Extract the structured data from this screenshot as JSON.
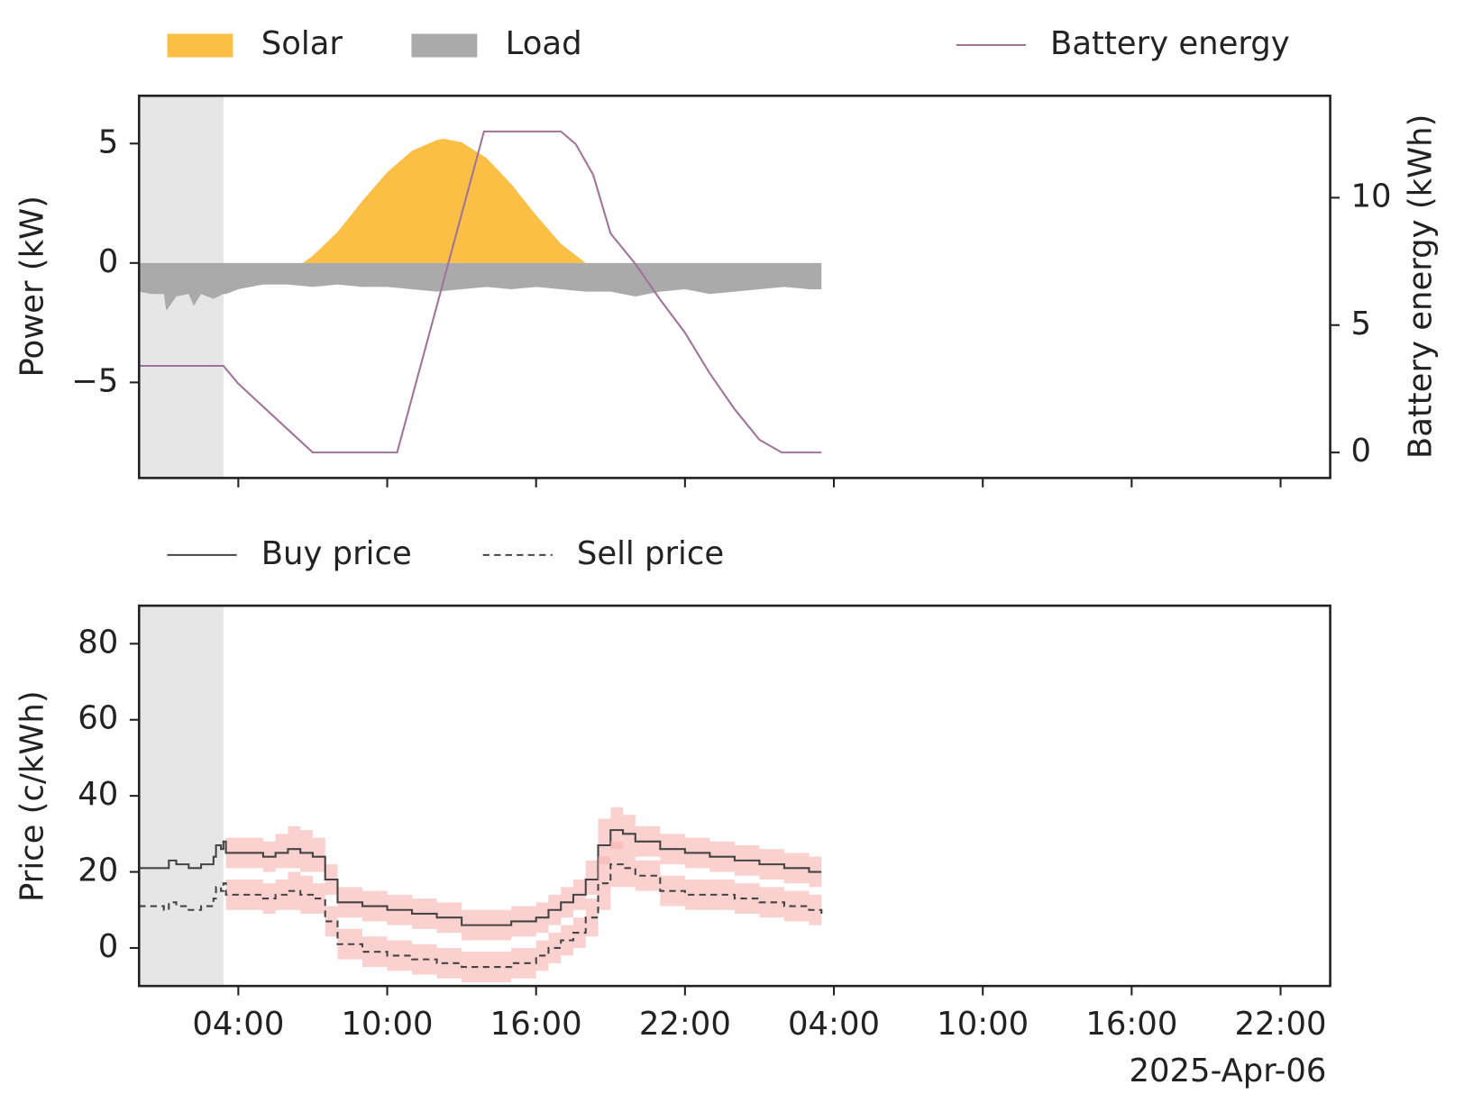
{
  "chart_data": [
    {
      "type": "area",
      "ylabel": "Power (kW)",
      "y2label": "Battery energy (kWh)",
      "xlim": [
        0,
        48
      ],
      "xticks": [
        4,
        10,
        16,
        22,
        28,
        34,
        40,
        46
      ],
      "ylim": [
        -9,
        7
      ],
      "yticks": [
        {
          "value": -5,
          "label": "−5"
        },
        0,
        5
      ],
      "y2lim": [
        -1,
        14
      ],
      "y2ticks": [
        0,
        5,
        10
      ],
      "history_span": [
        0,
        3.4
      ],
      "history_color": "#e6e6e6",
      "grid": false,
      "series": [
        {
          "name": "Solar",
          "kind": "area",
          "color": "#fbbf45",
          "x": [
            6.6,
            7,
            8,
            9,
            10,
            11,
            12,
            12.3,
            13,
            14,
            15,
            16,
            17,
            18
          ],
          "values": [
            0,
            0.3,
            1.3,
            2.6,
            3.8,
            4.7,
            5.15,
            5.2,
            5.05,
            4.4,
            3.3,
            2.0,
            0.8,
            0
          ]
        },
        {
          "name": "Load",
          "kind": "area",
          "color": "#aaaaaa",
          "x": [
            0,
            0.5,
            1,
            1.1,
            1.5,
            2,
            2.2,
            2.5,
            3,
            3.4,
            3.5,
            4,
            5,
            6,
            7,
            8,
            9,
            10,
            11,
            12,
            13,
            14,
            15,
            16,
            17,
            18,
            19,
            20,
            21,
            22,
            23,
            24,
            25,
            26,
            27,
            27.5
          ],
          "values": [
            -1.2,
            -1.3,
            -1.3,
            -2,
            -1.4,
            -1.3,
            -1.8,
            -1.3,
            -1.5,
            -1.3,
            -1.3,
            -1.1,
            -0.9,
            -0.9,
            -1.0,
            -0.9,
            -1.0,
            -1.0,
            -1.1,
            -1.2,
            -1.1,
            -1.0,
            -1.1,
            -1.0,
            -1.1,
            -1.2,
            -1.2,
            -1.4,
            -1.2,
            -1.1,
            -1.3,
            -1.2,
            -1.1,
            -1.0,
            -1.1,
            -1.1
          ]
        },
        {
          "name": "Battery energy",
          "kind": "line",
          "axis": "y2",
          "color": "#a0739a",
          "x": [
            0,
            3.4,
            4,
            5,
            6,
            7,
            10.4,
            13.9,
            17,
            17.6,
            18.3,
            19,
            20,
            21,
            22,
            23,
            24,
            25,
            25.9,
            27.5
          ],
          "values": [
            3.4,
            3.4,
            2.7,
            1.8,
            0.9,
            0,
            0,
            12.6,
            12.6,
            12.1,
            10.9,
            8.6,
            7.4,
            6.0,
            4.7,
            3.1,
            1.7,
            0.5,
            0,
            0
          ]
        }
      ]
    },
    {
      "type": "line",
      "ylabel": "Price (c/kWh)",
      "date_label": "2025-Apr-06",
      "xlim": [
        0,
        48
      ],
      "xticks": [
        {
          "value": 4,
          "label": "04:00"
        },
        {
          "value": 10,
          "label": "10:00"
        },
        {
          "value": 16,
          "label": "16:00"
        },
        {
          "value": 22,
          "label": "22:00"
        },
        {
          "value": 28,
          "label": "04:00"
        },
        {
          "value": 34,
          "label": "10:00"
        },
        {
          "value": 40,
          "label": "16:00"
        },
        {
          "value": 46,
          "label": "22:00"
        }
      ],
      "ylim": [
        -10,
        90
      ],
      "yticks": [
        0,
        20,
        40,
        60,
        80
      ],
      "history_span": [
        0,
        3.4
      ],
      "history_color": "#e6e6e6",
      "grid": false,
      "band_color": "#f8b9b5",
      "x": [
        0,
        1,
        1.2,
        1.5,
        2,
        2.5,
        3,
        3.1,
        3.3,
        3.4,
        3.5,
        5,
        5.5,
        6,
        6.5,
        7,
        7.5,
        8,
        9,
        10,
        11,
        12,
        13,
        14,
        15,
        16,
        16.5,
        17,
        17.5,
        18,
        18.5,
        19,
        19.5,
        20,
        21,
        22,
        23,
        24,
        25,
        26,
        27,
        27.5
      ],
      "series": [
        {
          "name": "Buy price",
          "kind": "step",
          "linestyle": "solid",
          "color": "#444444",
          "values": [
            21,
            21,
            23,
            22,
            21,
            22,
            24,
            27,
            26,
            28,
            25,
            24,
            25,
            26,
            25,
            24,
            18,
            12,
            11,
            10,
            9,
            8,
            6,
            6,
            7,
            8,
            10,
            12,
            14,
            18,
            27,
            31,
            30,
            28,
            26,
            25,
            24,
            23,
            22,
            21,
            20,
            20
          ],
          "upper": [
            null,
            null,
            null,
            null,
            null,
            null,
            null,
            null,
            null,
            null,
            29,
            28,
            30,
            32,
            31,
            29,
            22,
            16,
            15,
            14,
            13,
            12,
            10,
            10,
            11,
            12,
            14,
            16,
            18,
            23,
            34,
            37,
            35,
            32,
            30,
            29,
            28,
            27,
            26,
            25,
            24,
            24
          ],
          "lower": [
            null,
            null,
            null,
            null,
            null,
            null,
            null,
            null,
            null,
            null,
            21,
            20,
            21,
            21,
            20,
            20,
            14,
            8,
            7,
            6,
            5,
            4,
            2,
            2,
            3,
            4,
            6,
            8,
            10,
            14,
            22,
            26,
            26,
            24,
            22,
            21,
            20,
            19,
            18,
            17,
            16,
            16
          ]
        },
        {
          "name": "Sell price",
          "kind": "step",
          "linestyle": "dashed",
          "color": "#444444",
          "values": [
            11,
            10,
            12,
            11,
            10,
            11,
            13,
            16,
            15,
            17,
            14,
            13,
            14,
            15,
            14,
            13,
            7,
            1,
            -1,
            -2,
            -3,
            -4,
            -5,
            -5,
            -4,
            -2,
            0,
            2,
            4,
            8,
            17,
            22,
            21,
            19,
            15,
            14,
            14,
            13,
            12,
            11,
            10,
            9
          ],
          "upper": [
            null,
            null,
            null,
            null,
            null,
            null,
            null,
            null,
            null,
            null,
            18,
            17,
            18,
            20,
            19,
            17,
            11,
            5,
            3,
            2,
            1,
            0,
            -1,
            -1,
            0,
            2,
            4,
            6,
            8,
            13,
            24,
            28,
            26,
            23,
            19,
            18,
            18,
            17,
            16,
            15,
            14,
            13
          ],
          "lower": [
            null,
            null,
            null,
            null,
            null,
            null,
            null,
            null,
            null,
            null,
            10,
            9,
            10,
            10,
            9,
            9,
            3,
            -3,
            -5,
            -6,
            -7,
            -8,
            -9,
            -9,
            -8,
            -6,
            -4,
            -2,
            0,
            3,
            10,
            16,
            16,
            15,
            11,
            10,
            10,
            9,
            8,
            7,
            6,
            5
          ]
        }
      ]
    }
  ]
}
